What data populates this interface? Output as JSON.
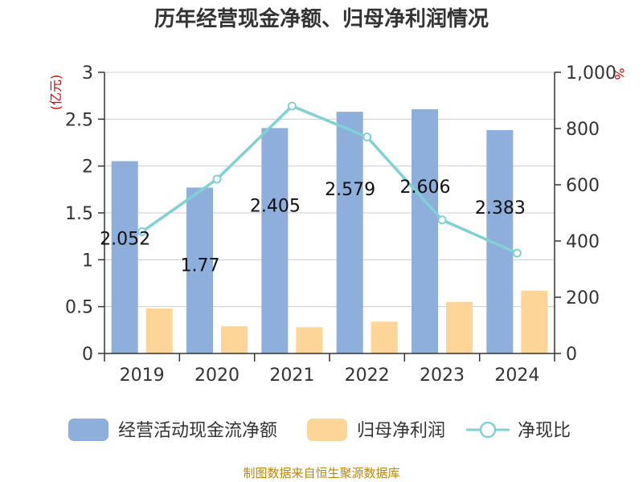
{
  "chart_data": {
    "type": "bar",
    "title": "历年经营现金净额、归母净利润情况",
    "categories": [
      "2019",
      "2020",
      "2021",
      "2022",
      "2023",
      "2024"
    ],
    "series": [
      {
        "name": "经营活动现金流净额",
        "type": "bar",
        "axis": "left",
        "color": "#8eaedb",
        "values": [
          2.052,
          1.77,
          2.405,
          2.579,
          2.606,
          2.383
        ],
        "labels": [
          "2.052",
          "1.77",
          "2.405",
          "2.579",
          "2.606",
          "2.383"
        ]
      },
      {
        "name": "归母净利润",
        "type": "bar",
        "axis": "left",
        "color": "#fdd598",
        "values": [
          0.48,
          0.29,
          0.28,
          0.34,
          0.55,
          0.67
        ]
      },
      {
        "name": "净现比",
        "type": "line",
        "axis": "right",
        "color": "#7fd1d4",
        "values": [
          433,
          620,
          880,
          770,
          475,
          357
        ]
      }
    ],
    "y_left": {
      "unit": "(亿元)",
      "ylim": [
        0,
        3
      ],
      "ticks": [
        0,
        0.5,
        1,
        1.5,
        2,
        2.5,
        3
      ],
      "tick_labels": [
        "0",
        "0.5",
        "1",
        "1.5",
        "2",
        "2.5",
        "3"
      ]
    },
    "y_right": {
      "unit": "%",
      "ylim": [
        0,
        1000
      ],
      "ticks": [
        0,
        200,
        400,
        600,
        800,
        1000
      ],
      "tick_labels": [
        "0",
        "200",
        "400",
        "600",
        "800",
        "1,000"
      ]
    },
    "grid": true,
    "legend_position": "bottom"
  },
  "source_text": "制图数据来自恒生聚源数据库"
}
